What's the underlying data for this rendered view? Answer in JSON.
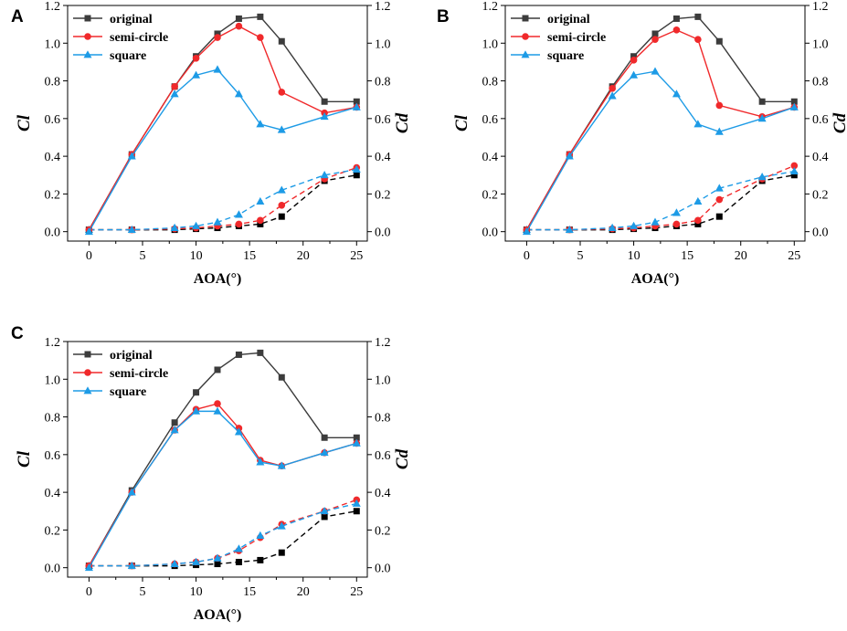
{
  "figure": {
    "x_ticks": [
      "0",
      "5",
      "10",
      "15",
      "20",
      "25"
    ],
    "y_ticks": [
      "0.0",
      "0.2",
      "0.4",
      "0.6",
      "0.8",
      "1.0",
      "1.2"
    ],
    "y2_ticks": [
      "0.0",
      "0.2",
      "0.4",
      "0.6",
      "0.8",
      "1.0",
      "1.2"
    ],
    "series_colors": {
      "original": "#3c3c3c",
      "semi-circle": "#f0292b",
      "square": "#1d9be6",
      "cd_original": "#000000"
    }
  },
  "chart_data": [
    {
      "panel": "A",
      "type": "line",
      "xlabel": "AOA(°)",
      "ylabel": "Cl",
      "y2label": "Cd",
      "xlim": [
        -2,
        26
      ],
      "ylim": [
        -0.05,
        1.2
      ],
      "y2lim": [
        -0.05,
        1.2
      ],
      "legend": [
        "original",
        "semi-circle",
        "square"
      ],
      "legend_position": "top-left",
      "x": [
        0,
        4,
        8,
        10,
        12,
        14,
        16,
        18,
        22,
        25
      ],
      "series": [
        {
          "name": "original",
          "axis": "Cl",
          "style": "solid",
          "marker": "square",
          "values": [
            0.01,
            0.41,
            0.77,
            0.93,
            1.05,
            1.13,
            1.14,
            1.01,
            0.69,
            0.69
          ]
        },
        {
          "name": "semi-circle",
          "axis": "Cl",
          "style": "solid",
          "marker": "circle",
          "values": [
            0.01,
            0.41,
            0.77,
            0.92,
            1.03,
            1.09,
            1.03,
            0.74,
            0.63,
            0.66
          ]
        },
        {
          "name": "square",
          "axis": "Cl",
          "style": "solid",
          "marker": "triangle",
          "values": [
            0.0,
            0.4,
            0.73,
            0.83,
            0.86,
            0.73,
            0.57,
            0.54,
            0.61,
            0.66
          ]
        },
        {
          "name": "original",
          "axis": "Cd",
          "style": "dashed",
          "marker": "square",
          "values": [
            0.01,
            0.01,
            0.01,
            0.015,
            0.02,
            0.03,
            0.04,
            0.08,
            0.27,
            0.3
          ]
        },
        {
          "name": "semi-circle",
          "axis": "Cd",
          "style": "dashed",
          "marker": "circle",
          "values": [
            0.01,
            0.01,
            0.015,
            0.02,
            0.03,
            0.04,
            0.06,
            0.14,
            0.28,
            0.34
          ]
        },
        {
          "name": "square",
          "axis": "Cd",
          "style": "dashed",
          "marker": "triangle",
          "values": [
            0.01,
            0.01,
            0.02,
            0.03,
            0.05,
            0.09,
            0.16,
            0.22,
            0.3,
            0.33
          ]
        }
      ]
    },
    {
      "panel": "B",
      "type": "line",
      "xlabel": "AOA(°)",
      "ylabel": "Cl",
      "y2label": "Cd",
      "xlim": [
        -2,
        26
      ],
      "ylim": [
        -0.05,
        1.2
      ],
      "y2lim": [
        -0.05,
        1.2
      ],
      "legend": [
        "original",
        "semi-circle",
        "square"
      ],
      "legend_position": "top-left",
      "x": [
        0,
        4,
        8,
        10,
        12,
        14,
        16,
        18,
        22,
        25
      ],
      "series": [
        {
          "name": "original",
          "axis": "Cl",
          "style": "solid",
          "marker": "square",
          "values": [
            0.01,
            0.41,
            0.77,
            0.93,
            1.05,
            1.13,
            1.14,
            1.01,
            0.69,
            0.69
          ]
        },
        {
          "name": "semi-circle",
          "axis": "Cl",
          "style": "solid",
          "marker": "circle",
          "values": [
            0.01,
            0.41,
            0.76,
            0.91,
            1.02,
            1.07,
            1.02,
            0.67,
            0.61,
            0.66
          ]
        },
        {
          "name": "square",
          "axis": "Cl",
          "style": "solid",
          "marker": "triangle",
          "values": [
            0.0,
            0.4,
            0.72,
            0.83,
            0.85,
            0.73,
            0.57,
            0.53,
            0.6,
            0.66
          ]
        },
        {
          "name": "original",
          "axis": "Cd",
          "style": "dashed",
          "marker": "square",
          "values": [
            0.01,
            0.01,
            0.01,
            0.015,
            0.02,
            0.03,
            0.04,
            0.08,
            0.27,
            0.3
          ]
        },
        {
          "name": "semi-circle",
          "axis": "Cd",
          "style": "dashed",
          "marker": "circle",
          "values": [
            0.01,
            0.01,
            0.015,
            0.02,
            0.03,
            0.04,
            0.06,
            0.17,
            0.28,
            0.35
          ]
        },
        {
          "name": "square",
          "axis": "Cd",
          "style": "dashed",
          "marker": "triangle",
          "values": [
            0.01,
            0.01,
            0.02,
            0.03,
            0.05,
            0.1,
            0.16,
            0.23,
            0.29,
            0.32
          ]
        }
      ]
    },
    {
      "panel": "C",
      "type": "line",
      "xlabel": "AOA(°)",
      "ylabel": "Cl",
      "y2label": "Cd",
      "xlim": [
        -2,
        26
      ],
      "ylim": [
        -0.05,
        1.2
      ],
      "y2lim": [
        -0.05,
        1.2
      ],
      "legend": [
        "original",
        "semi-circle",
        "square"
      ],
      "legend_position": "top-left",
      "x": [
        0,
        4,
        8,
        10,
        12,
        14,
        16,
        18,
        22,
        25
      ],
      "series": [
        {
          "name": "original",
          "axis": "Cl",
          "style": "solid",
          "marker": "square",
          "values": [
            0.01,
            0.41,
            0.77,
            0.93,
            1.05,
            1.13,
            1.14,
            1.01,
            0.69,
            0.69
          ]
        },
        {
          "name": "semi-circle",
          "axis": "Cl",
          "style": "solid",
          "marker": "circle",
          "values": [
            0.01,
            0.4,
            0.73,
            0.84,
            0.87,
            0.74,
            0.57,
            0.54,
            0.61,
            0.66
          ]
        },
        {
          "name": "square",
          "axis": "Cl",
          "style": "solid",
          "marker": "triangle",
          "values": [
            0.0,
            0.4,
            0.73,
            0.83,
            0.83,
            0.72,
            0.56,
            0.54,
            0.61,
            0.66
          ]
        },
        {
          "name": "original",
          "axis": "Cd",
          "style": "dashed",
          "marker": "square",
          "values": [
            0.01,
            0.01,
            0.01,
            0.015,
            0.02,
            0.03,
            0.04,
            0.08,
            0.27,
            0.3
          ]
        },
        {
          "name": "semi-circle",
          "axis": "Cd",
          "style": "dashed",
          "marker": "circle",
          "values": [
            0.01,
            0.01,
            0.02,
            0.03,
            0.05,
            0.09,
            0.16,
            0.23,
            0.3,
            0.36
          ]
        },
        {
          "name": "square",
          "axis": "Cd",
          "style": "dashed",
          "marker": "triangle",
          "values": [
            0.01,
            0.01,
            0.02,
            0.03,
            0.05,
            0.1,
            0.17,
            0.22,
            0.3,
            0.34
          ]
        }
      ]
    }
  ]
}
